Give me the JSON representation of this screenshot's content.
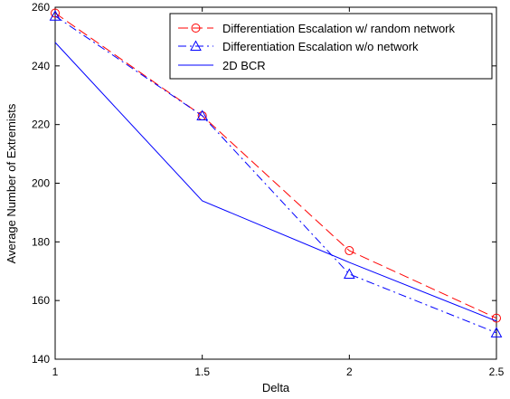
{
  "chart_data": {
    "type": "line",
    "title": "",
    "xlabel": "Delta",
    "ylabel": "Average Number of Extremists",
    "xlim": [
      1,
      2.5
    ],
    "ylim": [
      140,
      260
    ],
    "x_ticks": [
      1,
      1.5,
      2,
      2.5
    ],
    "x_tick_labels": [
      "1",
      "1.5",
      "2",
      "2.5"
    ],
    "y_ticks": [
      140,
      160,
      180,
      200,
      220,
      240,
      260
    ],
    "y_tick_labels": [
      "140",
      "160",
      "180",
      "200",
      "220",
      "240",
      "260"
    ],
    "grid": false,
    "legend_position": "top-right",
    "x": [
      1,
      1.5,
      2,
      2.5
    ],
    "series": [
      {
        "name": "Differentiation Escalation w/ random network",
        "values": [
          258,
          223,
          177,
          154
        ],
        "color": "#ff0000",
        "line_style": "dashed",
        "marker": "circle"
      },
      {
        "name": "Differentiation Escalation w/o network",
        "values": [
          257,
          223,
          169,
          149
        ],
        "color": "#0000ff",
        "line_style": "dashdot",
        "marker": "triangle"
      },
      {
        "name": "2D BCR",
        "values": [
          248,
          194,
          173,
          153
        ],
        "color": "#0000ff",
        "line_style": "solid",
        "marker": "none"
      }
    ]
  }
}
